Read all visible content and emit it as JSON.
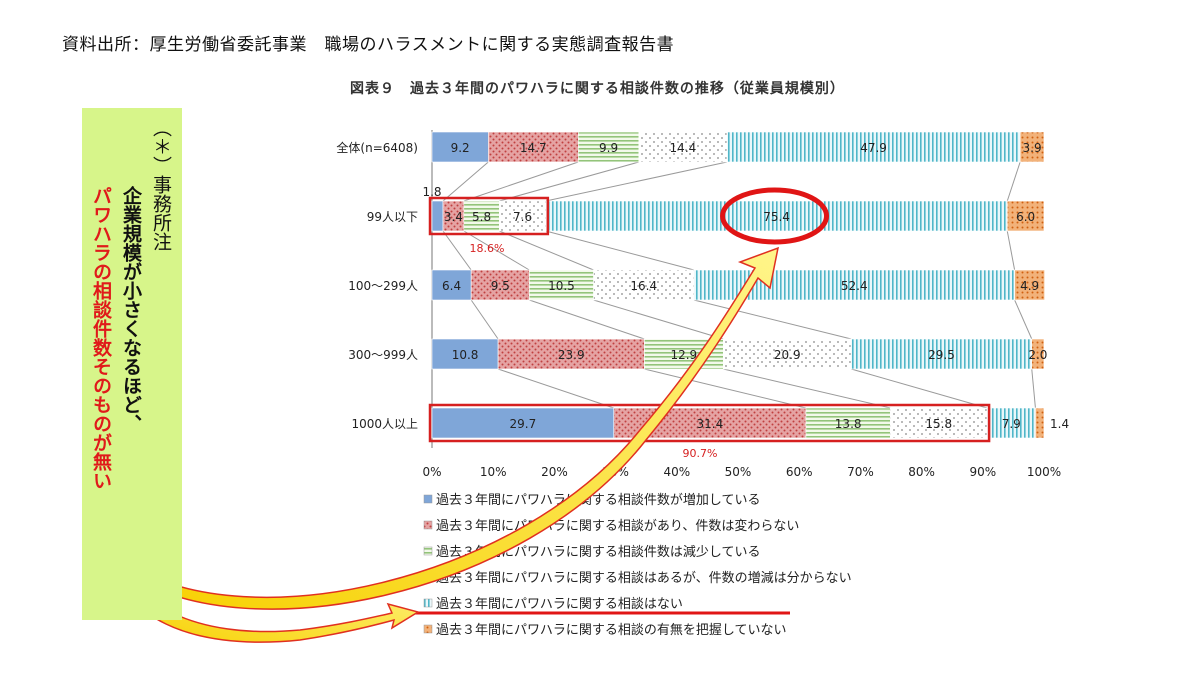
{
  "source_text": "資料出所：厚生労働省委託事業　職場のハラスメントに関する実態調査報告書",
  "note": {
    "prefix": "（＊）事務所注",
    "line1": "企業規模が小さくなるほど、",
    "line2": "パワハラの相談件数そのものが無い"
  },
  "chart_data": {
    "type": "bar",
    "orientation": "horizontal",
    "stacked": true,
    "title": "図表９　過去３年間のパワハラに関する相談件数の推移（従業員規模別）",
    "categories": [
      "全体(n=6408)",
      "99人以下",
      "100～299人",
      "300～999人",
      "1000人以上"
    ],
    "series": [
      {
        "name": "過去３年間にパワハラに関する相談件数が増加している",
        "values": [
          9.2,
          1.8,
          6.4,
          10.8,
          29.7
        ],
        "color": "#7fa6d8",
        "pattern": "solid"
      },
      {
        "name": "過去３年間にパワハラに関する相談があり、件数は変わらない",
        "values": [
          14.7,
          3.4,
          9.5,
          23.9,
          31.4
        ],
        "color": "#e8a0a0",
        "pattern": "dots"
      },
      {
        "name": "過去３年間にパワハラに関する相談件数は減少している",
        "values": [
          9.9,
          5.8,
          10.5,
          12.9,
          13.8
        ],
        "color": "#b8dca0",
        "pattern": "hlines"
      },
      {
        "name": "過去３年間にパワハラに関する相談はあるが、件数の増減は分からない",
        "values": [
          14.4,
          7.6,
          16.4,
          20.9,
          15.8
        ],
        "color": "#e6e6e6",
        "pattern": "sparse"
      },
      {
        "name": "過去３年間にパワハラに関する相談はない",
        "values": [
          47.9,
          75.4,
          52.4,
          29.5,
          7.9
        ],
        "color": "#8fd0dc",
        "pattern": "vlines"
      },
      {
        "name": "過去３年間にパワハラに関する相談の有無を把握していない",
        "values": [
          3.9,
          6.0,
          4.9,
          2.0,
          1.4
        ],
        "color": "#f0a060",
        "pattern": "orange"
      }
    ],
    "xlim": [
      0,
      100
    ],
    "xticks": [
      "0%",
      "10%",
      "20%",
      "30%",
      "40%",
      "50%",
      "60%",
      "70%",
      "80%",
      "90%",
      "100%"
    ],
    "legend_position": "bottom",
    "annotations": [
      "18.6%",
      "90.7%"
    ]
  }
}
